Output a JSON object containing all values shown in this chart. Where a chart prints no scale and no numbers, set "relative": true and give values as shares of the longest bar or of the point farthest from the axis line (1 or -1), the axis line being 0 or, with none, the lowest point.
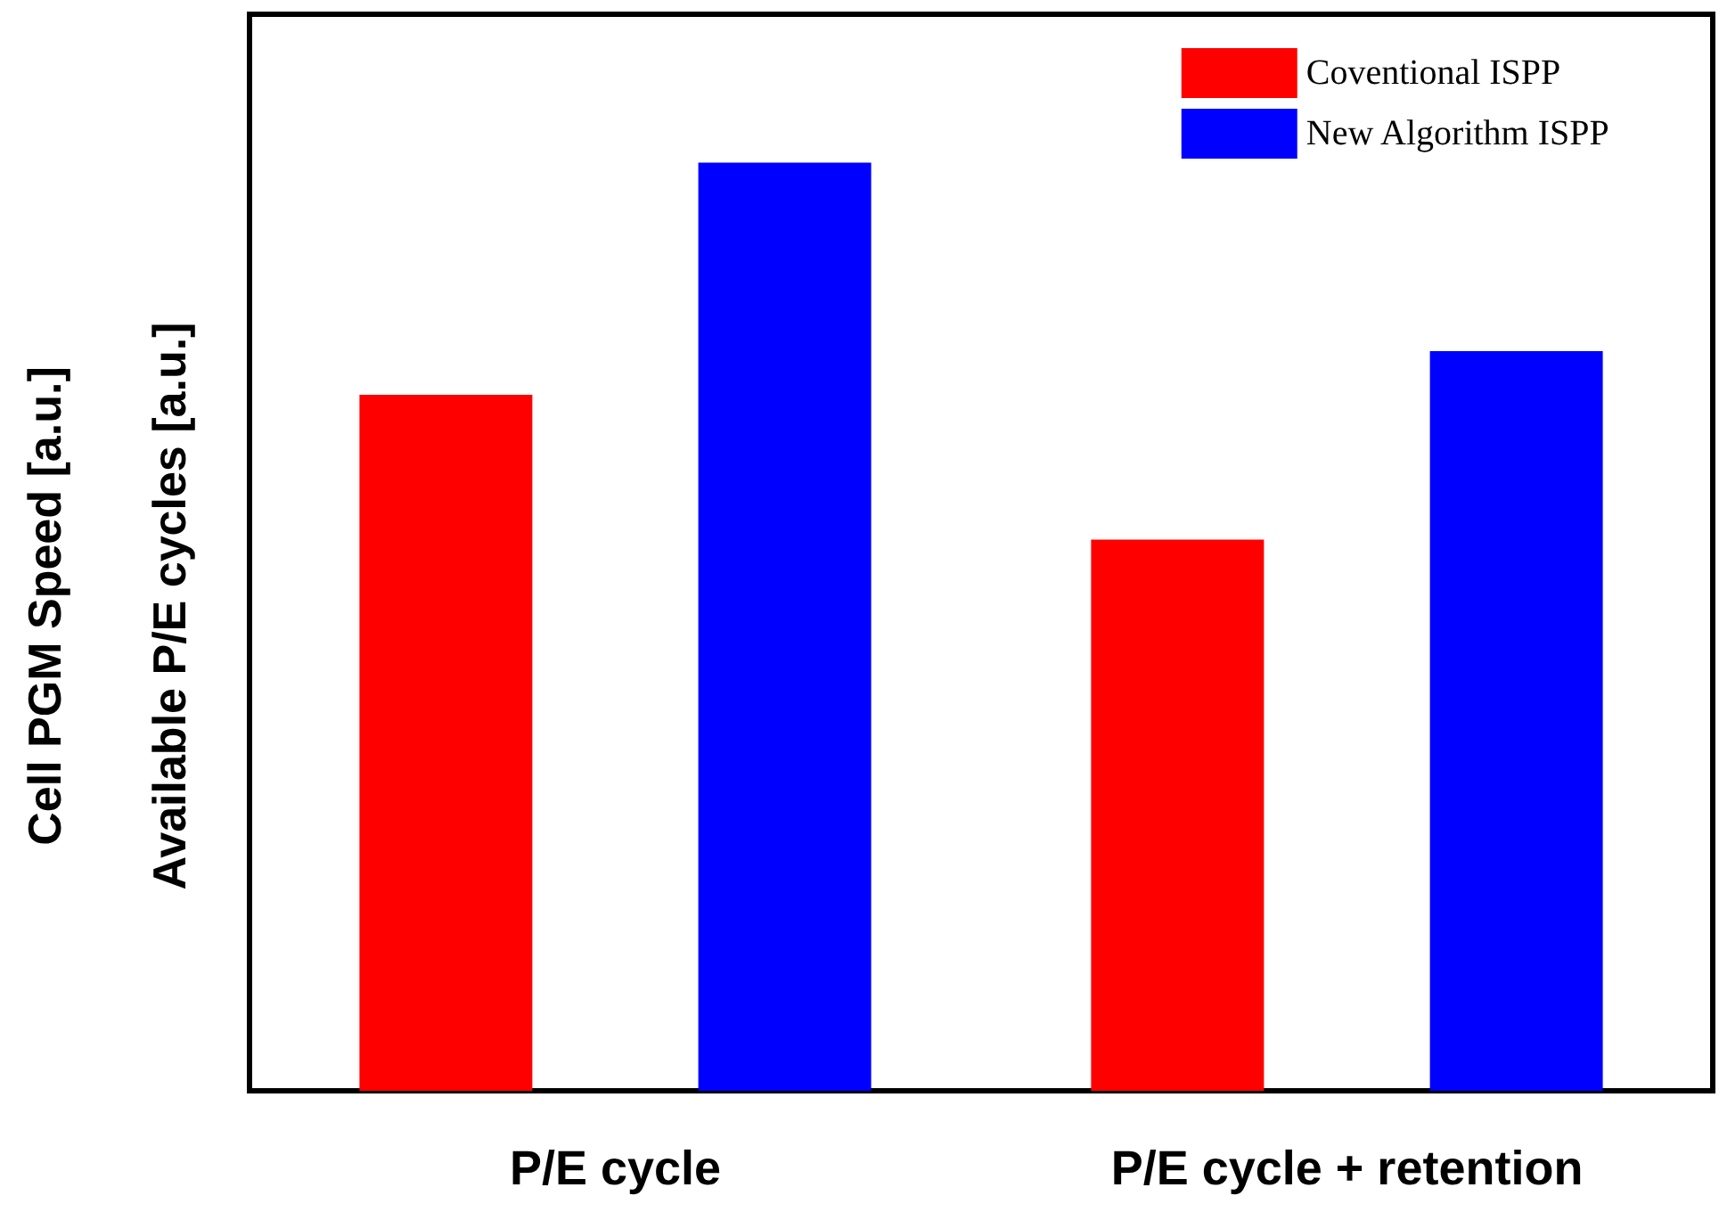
{
  "chart_data": {
    "type": "bar",
    "relative": true,
    "categories": [
      "P/E cycle",
      "P/E cycle + retention"
    ],
    "ylabel": "Available P/E cycles [a.u.]",
    "annotations": [
      "Cell PGM Speed [a.u.]"
    ],
    "series": [
      {
        "name": "Coventional ISPP",
        "color": "#ff0000",
        "values": [
          0.75,
          0.594
        ]
      },
      {
        "name": "New Algorithm ISPP",
        "color": "#0000ff",
        "values": [
          1,
          0.797
        ]
      }
    ],
    "legend": "top right"
  }
}
